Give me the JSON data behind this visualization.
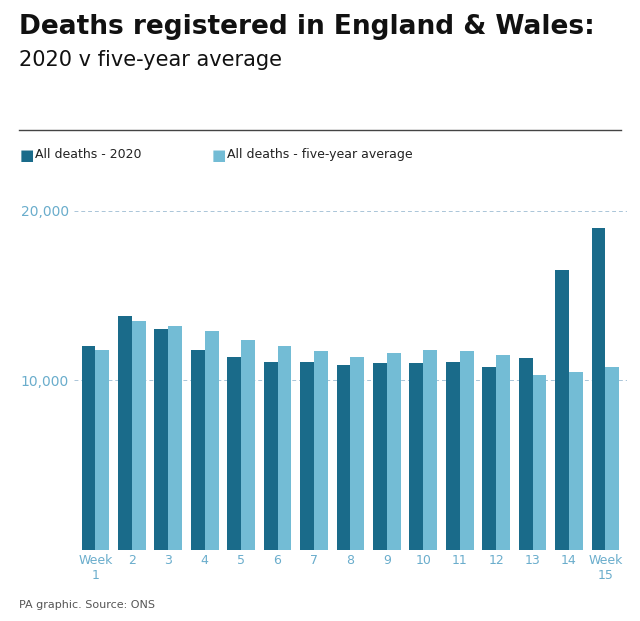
{
  "title_line1": "Deaths registered in England & Wales:",
  "title_line2": "2020 v five-year average",
  "legend_2020": "All deaths - 2020",
  "legend_avg": "All deaths - five-year average",
  "source": "PA graphic. Source: ONS",
  "weeks": [
    "Week\n1",
    "2",
    "3",
    "4",
    "5",
    "6",
    "7",
    "8",
    "9",
    "10",
    "11",
    "12",
    "13",
    "14",
    "Week\n15"
  ],
  "deaths_2020": [
    12000,
    13800,
    13000,
    11800,
    11400,
    11100,
    11100,
    10900,
    11000,
    11000,
    11100,
    10800,
    11300,
    16500,
    19000
  ],
  "deaths_avg": [
    11800,
    13500,
    13200,
    12900,
    12400,
    12000,
    11700,
    11400,
    11600,
    11800,
    11700,
    11500,
    10300,
    10500,
    10800
  ],
  "color_2020": "#1a6b8a",
  "color_avg": "#73bcd5",
  "color_grid": "#aac5d8",
  "ylim": [
    0,
    22000
  ],
  "yticks": [
    10000,
    20000
  ],
  "ytick_labels": [
    "10,000",
    "20,000"
  ],
  "background": "#ffffff",
  "title_fontsize": 19,
  "subtitle_fontsize": 15,
  "axis_label_color": "#6aadcc",
  "bar_width": 0.38
}
